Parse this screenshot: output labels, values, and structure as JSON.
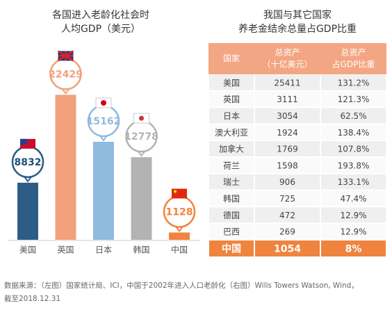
{
  "chart_data": {
    "type": "bar",
    "title": "各国进入老龄化社会时",
    "subtitle": "人均GDP（美元）",
    "categories": [
      "美国",
      "英国",
      "日本",
      "韩国",
      "中国"
    ],
    "values": [
      8832,
      22429,
      15162,
      12778,
      1128
    ],
    "colors": [
      "#2d5d87",
      "#f2a17c",
      "#91badf",
      "#b3b3b3",
      "#f0843f"
    ]
  },
  "table": {
    "title": "我国与其它国家",
    "subtitle": "养老金结余总量占GDP比重",
    "header": [
      "国家",
      [
        "总资产",
        "（十亿美元）"
      ],
      [
        "总资产",
        "占GDP比重"
      ]
    ],
    "rows": [
      [
        "美国",
        "25411",
        "131.2%"
      ],
      [
        "英国",
        "3111",
        "121.3%"
      ],
      [
        "日本",
        "3054",
        "62.5%"
      ],
      [
        "澳大利亚",
        "1924",
        "138.4%"
      ],
      [
        "加拿大",
        "1769",
        "107.8%"
      ],
      [
        "荷兰",
        "1598",
        "193.8%"
      ],
      [
        "瑞士",
        "906",
        "133.1%"
      ],
      [
        "韩国",
        "725",
        "47.4%"
      ],
      [
        "德国",
        "472",
        "12.9%"
      ],
      [
        "巴西",
        "269",
        "12.9%"
      ],
      [
        "中国",
        "1054",
        "8%"
      ]
    ]
  },
  "source": [
    "数据来源：（左图）国家统计局、ICI，中国于2002年进入人口老龄化（右图）Wills Towers Watson, Wind，",
    "截至2018.12.31"
  ]
}
